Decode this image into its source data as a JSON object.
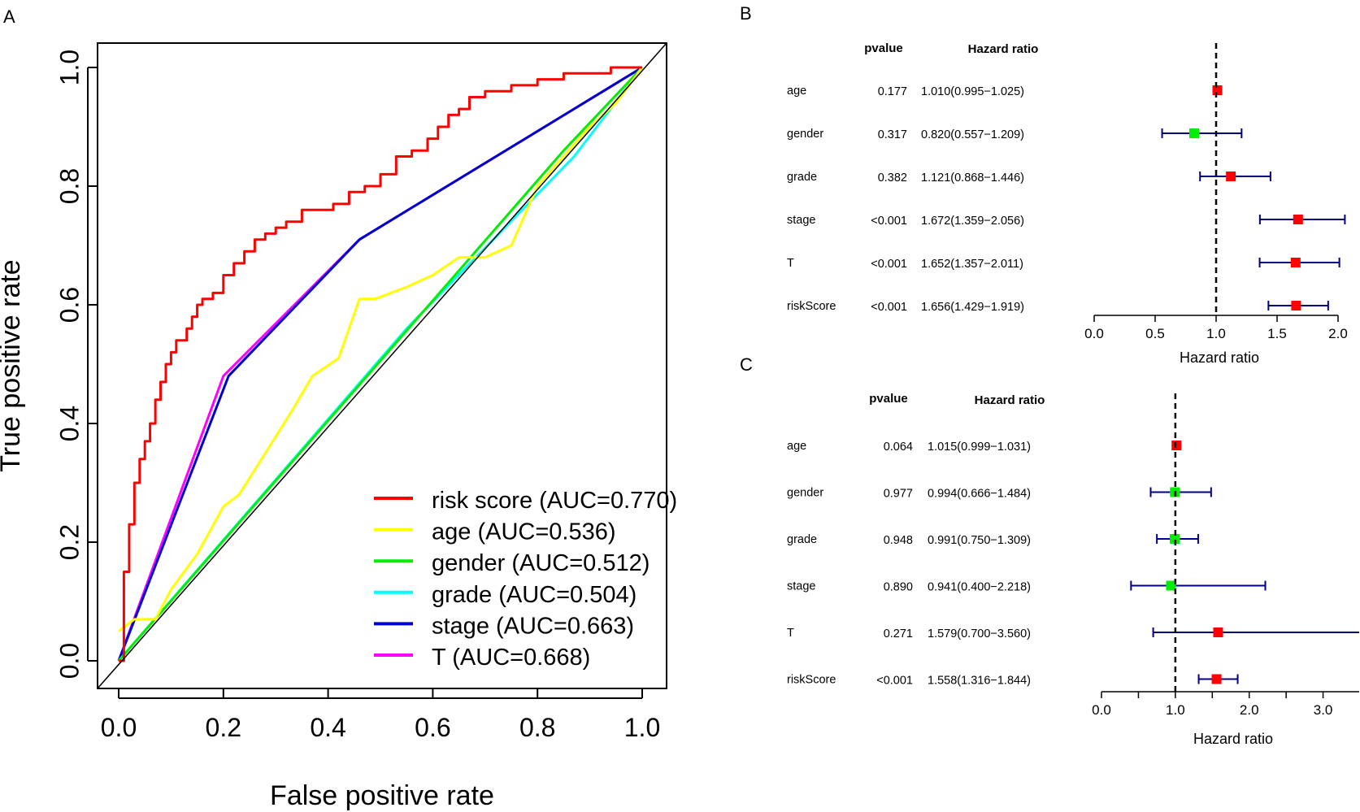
{
  "chart_data": [
    {
      "panel": "A",
      "type": "line",
      "xlabel": "False positive rate",
      "ylabel": "True positive rate",
      "xlim": [
        0,
        1
      ],
      "ylim": [
        0,
        1
      ],
      "xticks": [
        "0.0",
        "0.2",
        "0.4",
        "0.6",
        "0.8",
        "1.0"
      ],
      "yticks": [
        "0.0",
        "0.2",
        "0.4",
        "0.6",
        "0.8",
        "1.0"
      ],
      "legend_position": "bottom-right",
      "series": [
        {
          "name": "risk score (AUC=0.770)",
          "color": "#ff0000",
          "step": true,
          "x": [
            0,
            0.01,
            0.01,
            0.02,
            0.02,
            0.03,
            0.03,
            0.04,
            0.04,
            0.05,
            0.05,
            0.06,
            0.06,
            0.07,
            0.07,
            0.08,
            0.08,
            0.09,
            0.09,
            0.1,
            0.1,
            0.11,
            0.11,
            0.13,
            0.13,
            0.14,
            0.14,
            0.15,
            0.15,
            0.16,
            0.16,
            0.18,
            0.18,
            0.2,
            0.2,
            0.22,
            0.22,
            0.24,
            0.24,
            0.26,
            0.26,
            0.28,
            0.28,
            0.3,
            0.3,
            0.32,
            0.32,
            0.35,
            0.35,
            0.38,
            0.38,
            0.41,
            0.41,
            0.44,
            0.44,
            0.47,
            0.47,
            0.5,
            0.5,
            0.53,
            0.53,
            0.56,
            0.56,
            0.59,
            0.59,
            0.61,
            0.61,
            0.63,
            0.63,
            0.65,
            0.65,
            0.67,
            0.67,
            0.7,
            0.7,
            0.75,
            0.75,
            0.8,
            0.8,
            0.85,
            0.85,
            0.9,
            0.9,
            0.94,
            0.94,
            1.0
          ],
          "y": [
            0,
            0,
            0.15,
            0.15,
            0.23,
            0.23,
            0.3,
            0.3,
            0.34,
            0.34,
            0.37,
            0.37,
            0.4,
            0.4,
            0.44,
            0.44,
            0.47,
            0.47,
            0.5,
            0.5,
            0.52,
            0.52,
            0.54,
            0.54,
            0.56,
            0.56,
            0.58,
            0.58,
            0.6,
            0.6,
            0.61,
            0.61,
            0.62,
            0.62,
            0.65,
            0.65,
            0.67,
            0.67,
            0.69,
            0.69,
            0.71,
            0.71,
            0.72,
            0.72,
            0.73,
            0.73,
            0.74,
            0.74,
            0.76,
            0.76,
            0.76,
            0.76,
            0.77,
            0.77,
            0.79,
            0.79,
            0.8,
            0.8,
            0.82,
            0.82,
            0.85,
            0.85,
            0.86,
            0.86,
            0.88,
            0.88,
            0.9,
            0.9,
            0.92,
            0.92,
            0.93,
            0.93,
            0.95,
            0.95,
            0.96,
            0.96,
            0.97,
            0.97,
            0.98,
            0.98,
            0.99,
            0.99,
            0.99,
            0.99,
            1.0,
            1.0
          ]
        },
        {
          "name": "age (AUC=0.536)",
          "color": "#ffff00",
          "step": false,
          "x": [
            0,
            0.03,
            0.07,
            0.1,
            0.15,
            0.2,
            0.23,
            0.28,
            0.33,
            0.37,
            0.42,
            0.46,
            0.49,
            0.55,
            0.6,
            0.65,
            0.7,
            0.75,
            0.8,
            0.85,
            0.9,
            0.95,
            1.0
          ],
          "y": [
            0.05,
            0.07,
            0.07,
            0.12,
            0.18,
            0.26,
            0.28,
            0.35,
            0.42,
            0.48,
            0.51,
            0.61,
            0.61,
            0.63,
            0.65,
            0.68,
            0.68,
            0.7,
            0.8,
            0.85,
            0.9,
            0.94,
            1.0
          ]
        },
        {
          "name": "gender (AUC=0.512)",
          "color": "#00ee00",
          "step": false,
          "x": [
            0,
            0.85,
            1.0
          ],
          "y": [
            0,
            0.86,
            1.0
          ]
        },
        {
          "name": "grade (AUC=0.504)",
          "color": "#00ffff",
          "step": false,
          "x": [
            0,
            0.55,
            0.87,
            1.0
          ],
          "y": [
            0,
            0.56,
            0.85,
            1.0
          ]
        },
        {
          "name": "stage (AUC=0.663)",
          "color": "#0000cc",
          "step": false,
          "x": [
            0,
            0.21,
            0.46,
            1.0
          ],
          "y": [
            0,
            0.48,
            0.71,
            1.0
          ]
        },
        {
          "name": "T (AUC=0.668)",
          "color": "#ff00ff",
          "step": false,
          "x": [
            0,
            0.2,
            0.46,
            1.0
          ],
          "y": [
            0,
            0.48,
            0.71,
            1.0
          ]
        }
      ]
    },
    {
      "panel": "B",
      "type": "forest",
      "header_pvalue": "pvalue",
      "header_hr": "Hazard ratio",
      "xlabel": "Hazard ratio",
      "xlim": [
        0,
        2.0
      ],
      "xticks": [
        "0.0",
        "0.5",
        "1.0",
        "1.5",
        "2.0"
      ],
      "reference_line": 1,
      "rows": [
        {
          "label": "age",
          "pvalue": "0.177",
          "hr_text": "1.010(0.995−1.025)",
          "hr": 1.01,
          "lower": 0.995,
          "upper": 1.025,
          "color": "#ff0000"
        },
        {
          "label": "gender",
          "pvalue": "0.317",
          "hr_text": "0.820(0.557−1.209)",
          "hr": 0.82,
          "lower": 0.557,
          "upper": 1.209,
          "color": "#00ee00"
        },
        {
          "label": "grade",
          "pvalue": "0.382",
          "hr_text": "1.121(0.868−1.446)",
          "hr": 1.121,
          "lower": 0.868,
          "upper": 1.446,
          "color": "#ff0000"
        },
        {
          "label": "stage",
          "pvalue": "<0.001",
          "hr_text": "1.672(1.359−2.056)",
          "hr": 1.672,
          "lower": 1.359,
          "upper": 2.056,
          "color": "#ff0000"
        },
        {
          "label": "T",
          "pvalue": "<0.001",
          "hr_text": "1.652(1.357−2.011)",
          "hr": 1.652,
          "lower": 1.357,
          "upper": 2.011,
          "color": "#ff0000"
        },
        {
          "label": "riskScore",
          "pvalue": "<0.001",
          "hr_text": "1.656(1.429−1.919)",
          "hr": 1.656,
          "lower": 1.429,
          "upper": 1.919,
          "color": "#ff0000"
        }
      ]
    },
    {
      "panel": "C",
      "type": "forest",
      "header_pvalue": "pvalue",
      "header_hr": "Hazard ratio",
      "xlabel": "Hazard ratio",
      "xlim": [
        0,
        3.5
      ],
      "xticks": [
        "0.0",
        "1.0",
        "2.0",
        "3.0"
      ],
      "reference_line": 1,
      "rows": [
        {
          "label": "age",
          "pvalue": "0.064",
          "hr_text": "1.015(0.999−1.031)",
          "hr": 1.015,
          "lower": 0.999,
          "upper": 1.031,
          "color": "#ff0000"
        },
        {
          "label": "gender",
          "pvalue": "0.977",
          "hr_text": "0.994(0.666−1.484)",
          "hr": 0.994,
          "lower": 0.666,
          "upper": 1.484,
          "color": "#00ee00"
        },
        {
          "label": "grade",
          "pvalue": "0.948",
          "hr_text": "0.991(0.750−1.309)",
          "hr": 0.991,
          "lower": 0.75,
          "upper": 1.309,
          "color": "#00ee00"
        },
        {
          "label": "stage",
          "pvalue": "0.890",
          "hr_text": "0.941(0.400−2.218)",
          "hr": 0.941,
          "lower": 0.4,
          "upper": 2.218,
          "color": "#00ee00"
        },
        {
          "label": "T",
          "pvalue": "0.271",
          "hr_text": "1.579(0.700−3.560)",
          "hr": 1.579,
          "lower": 0.7,
          "upper": 3.56,
          "color": "#ff0000"
        },
        {
          "label": "riskScore",
          "pvalue": "<0.001",
          "hr_text": "1.558(1.316−1.844)",
          "hr": 1.558,
          "lower": 1.316,
          "upper": 1.844,
          "color": "#ff0000"
        }
      ]
    }
  ],
  "reference_color": "#000000",
  "ci_color": "#000080"
}
